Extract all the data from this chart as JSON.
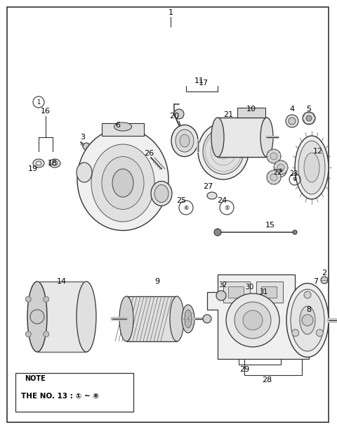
{
  "bg_color": "#ffffff",
  "border_color": "#333333",
  "fig_width": 4.8,
  "fig_height": 6.11,
  "dpi": 100,
  "note_line1": "NOTE",
  "note_line2": "THE NO. 13 : ① ~ ⑥"
}
